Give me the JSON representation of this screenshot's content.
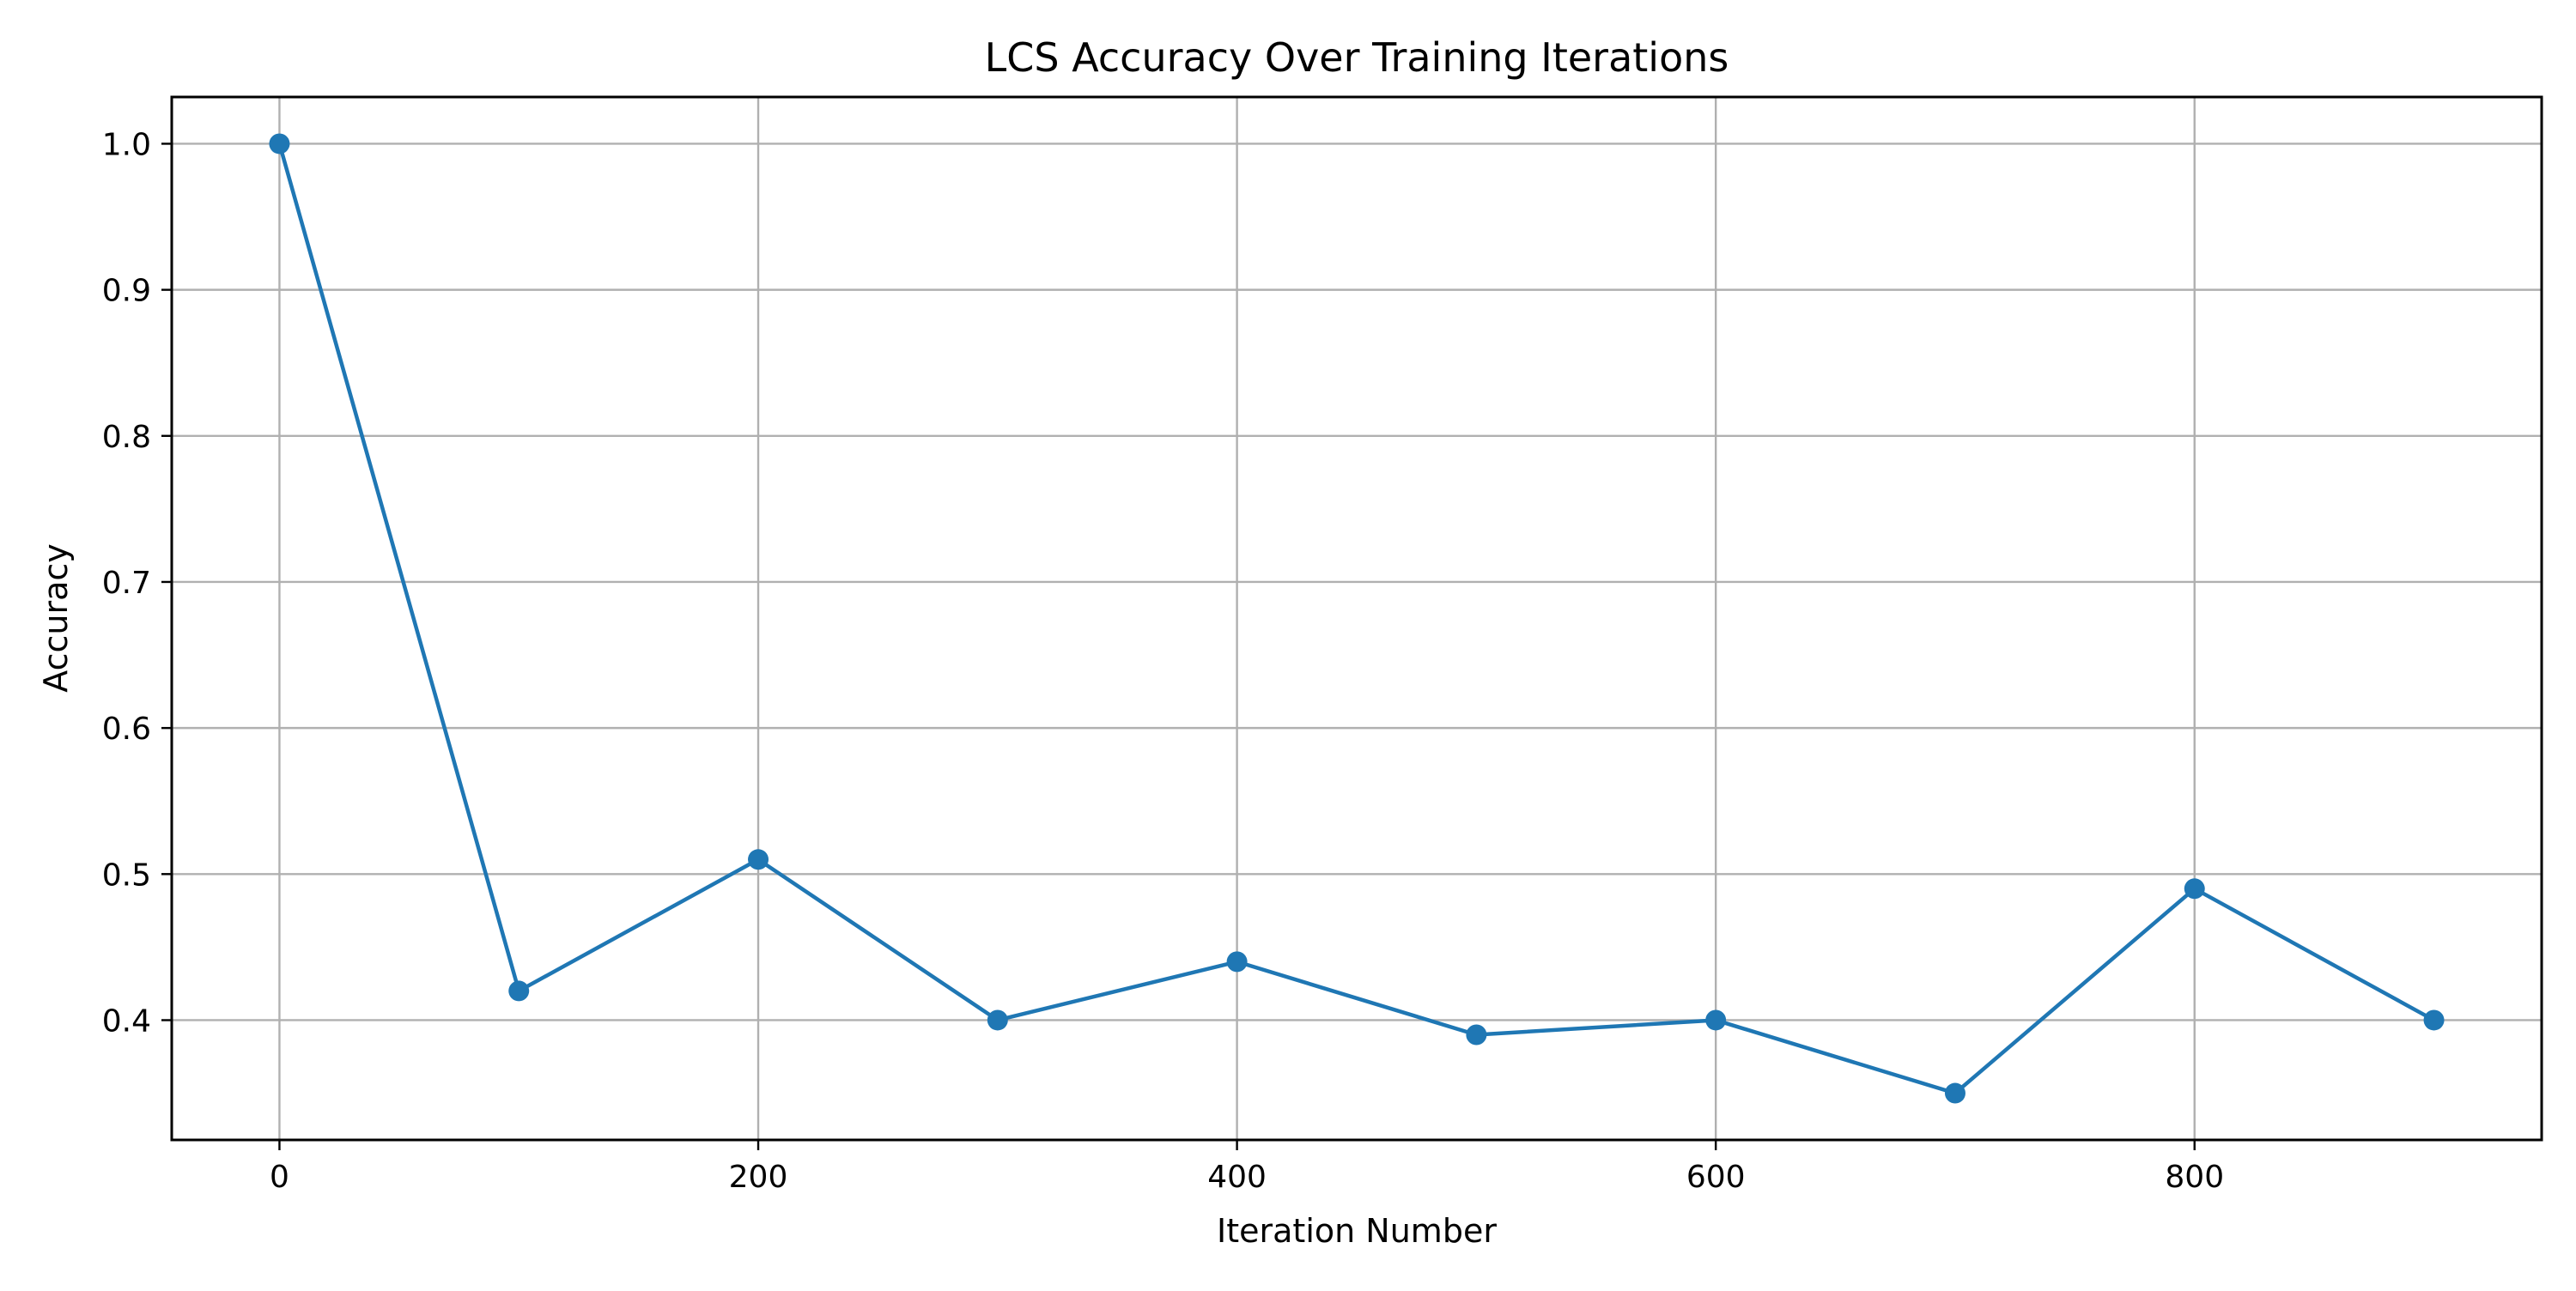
{
  "chart_data": {
    "type": "line",
    "title": "LCS Accuracy Over Training Iterations",
    "xlabel": "Iteration Number",
    "ylabel": "Accuracy",
    "x": [
      0,
      100,
      200,
      300,
      400,
      500,
      600,
      700,
      800,
      900
    ],
    "series": [
      {
        "values": [
          1.0,
          0.42,
          0.51,
          0.4,
          0.44,
          0.39,
          0.4,
          0.35,
          0.49,
          0.4
        ],
        "color": "#1f77b4",
        "marker": "circle"
      }
    ],
    "xticks": [
      0,
      200,
      400,
      600,
      800
    ],
    "xtick_labels": [
      "0",
      "200",
      "400",
      "600",
      "800"
    ],
    "yticks": [
      0.4,
      0.5,
      0.6,
      0.7,
      0.8,
      0.9,
      1.0
    ],
    "ytick_labels": [
      "0.4",
      "0.5",
      "0.6",
      "0.7",
      "0.8",
      "0.9",
      "1.0"
    ],
    "xlim": [
      -45,
      945
    ],
    "ylim": [
      0.318,
      1.032
    ],
    "grid": true,
    "grid_color": "#b0b0b0",
    "legend": "none"
  }
}
